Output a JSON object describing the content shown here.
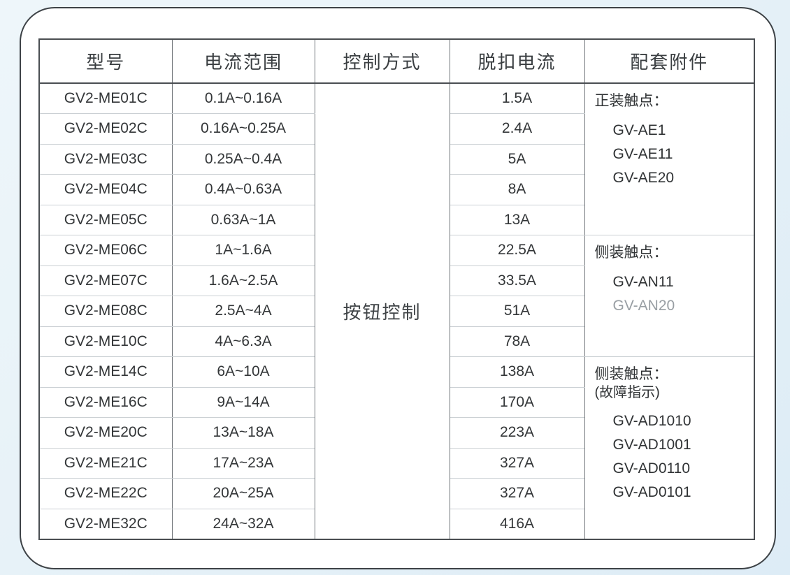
{
  "colors": {
    "page_background": "#e7f1f8",
    "card_background": "#ffffff",
    "card_border": "#3d4246",
    "table_outer_border": "#4a4e52",
    "column_line": "#70757a",
    "row_line": "#cbd0d4",
    "text": "#333638",
    "muted_text": "#989ea3"
  },
  "chart_data": {
    "type": "table",
    "columns": [
      "型号",
      "电流范围",
      "控制方式",
      "脱扣电流",
      "配套附件"
    ],
    "control_method": "按钮控制",
    "rows": [
      {
        "model": "GV2-ME01C",
        "range": "0.1A~0.16A",
        "trip": "1.5A"
      },
      {
        "model": "GV2-ME02C",
        "range": "0.16A~0.25A",
        "trip": "2.4A"
      },
      {
        "model": "GV2-ME03C",
        "range": "0.25A~0.4A",
        "trip": "5A"
      },
      {
        "model": "GV2-ME04C",
        "range": "0.4A~0.63A",
        "trip": "8A"
      },
      {
        "model": "GV2-ME05C",
        "range": "0.63A~1A",
        "trip": "13A"
      },
      {
        "model": "GV2-ME06C",
        "range": "1A~1.6A",
        "trip": "22.5A"
      },
      {
        "model": "GV2-ME07C",
        "range": "1.6A~2.5A",
        "trip": "33.5A"
      },
      {
        "model": "GV2-ME08C",
        "range": "2.5A~4A",
        "trip": "51A"
      },
      {
        "model": "GV2-ME10C",
        "range": "4A~6.3A",
        "trip": "78A"
      },
      {
        "model": "GV2-ME14C",
        "range": "6A~10A",
        "trip": "138A"
      },
      {
        "model": "GV2-ME16C",
        "range": "9A~14A",
        "trip": "170A"
      },
      {
        "model": "GV2-ME20C",
        "range": "13A~18A",
        "trip": "223A"
      },
      {
        "model": "GV2-ME21C",
        "range": "17A~23A",
        "trip": "327A"
      },
      {
        "model": "GV2-ME22C",
        "range": "20A~25A",
        "trip": "327A"
      },
      {
        "model": "GV2-ME32C",
        "range": "24A~32A",
        "trip": "416A"
      }
    ],
    "accessory_groups": [
      {
        "title": "正装触点：",
        "items": [
          "GV-AE1",
          "GV-AE11",
          "GV-AE20"
        ],
        "row_span": 5
      },
      {
        "title": "侧装触点：",
        "items": [
          "GV-AN11",
          "GV-AN20"
        ],
        "muted_item": "GV-AN20",
        "row_span": 4
      },
      {
        "title": "侧装触点：",
        "subtitle": "(故障指示)",
        "items": [
          "GV-AD1010",
          "GV-AD1001",
          "GV-AD0110",
          "GV-AD0101"
        ],
        "row_span": 6
      }
    ]
  }
}
